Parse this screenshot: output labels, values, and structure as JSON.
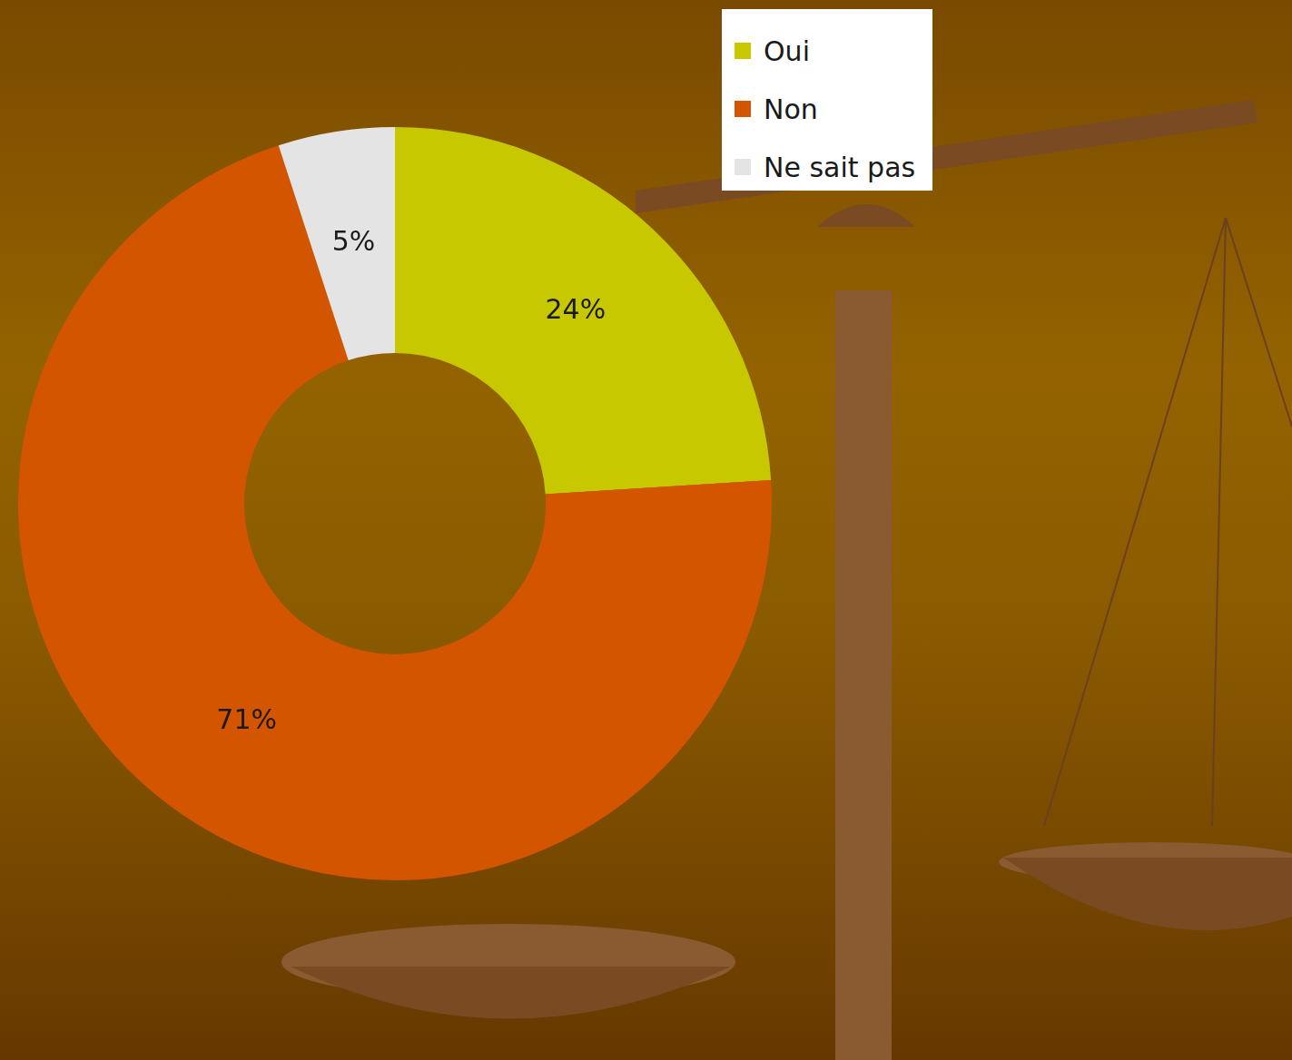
{
  "chart_data": {
    "type": "doughnut",
    "categories": [
      "Oui",
      "Non",
      "Ne sait pas"
    ],
    "values": [
      24,
      71,
      5
    ],
    "value_labels": [
      "24%",
      "71%",
      "5%"
    ],
    "colors": [
      "#c8c800",
      "#d45500",
      "#e4e4e4"
    ],
    "data_labels": true,
    "legend": "top right"
  }
}
